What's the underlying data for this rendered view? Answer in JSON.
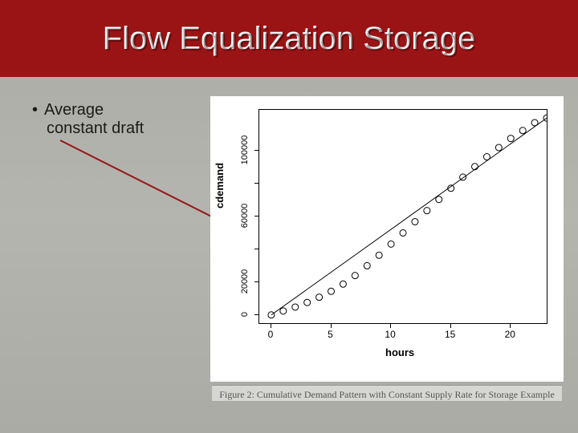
{
  "title": "Flow Equalization Storage",
  "bullet": {
    "line1": "Average",
    "line2": "constant draft"
  },
  "caption": "Figure 2: Cumulative Demand Pattern with Constant Supply Rate for Storage Example",
  "arrow": {
    "color": "#9a1416",
    "width": 2
  },
  "chart": {
    "type": "scatter+line",
    "xlabel": "hours",
    "ylabel": "cdemand",
    "xlim": [
      -1,
      23
    ],
    "ylim": [
      -5000,
      125000
    ],
    "xticks": [
      0,
      5,
      10,
      15,
      20
    ],
    "yticks": [
      0,
      20000,
      40000,
      60000,
      80000,
      100000
    ],
    "ytick_labels": [
      "0",
      "20000",
      "",
      "60000",
      "",
      "100000"
    ],
    "points": [
      {
        "x": 0,
        "y": 0
      },
      {
        "x": 1,
        "y": 2400
      },
      {
        "x": 2,
        "y": 4800
      },
      {
        "x": 3,
        "y": 7600
      },
      {
        "x": 4,
        "y": 10800
      },
      {
        "x": 5,
        "y": 14400
      },
      {
        "x": 6,
        "y": 18800
      },
      {
        "x": 7,
        "y": 24000
      },
      {
        "x": 8,
        "y": 30000
      },
      {
        "x": 9,
        "y": 36400
      },
      {
        "x": 10,
        "y": 43200
      },
      {
        "x": 11,
        "y": 50000
      },
      {
        "x": 12,
        "y": 56800
      },
      {
        "x": 13,
        "y": 63600
      },
      {
        "x": 14,
        "y": 70400
      },
      {
        "x": 15,
        "y": 77200
      },
      {
        "x": 16,
        "y": 84000
      },
      {
        "x": 17,
        "y": 90400
      },
      {
        "x": 18,
        "y": 96400
      },
      {
        "x": 19,
        "y": 102000
      },
      {
        "x": 20,
        "y": 107600
      },
      {
        "x": 21,
        "y": 112400
      },
      {
        "x": 22,
        "y": 117200
      },
      {
        "x": 23,
        "y": 120000
      }
    ],
    "line": {
      "x1": 0,
      "y1": 0,
      "x2": 23,
      "y2": 120000
    },
    "marker": {
      "shape": "circle",
      "size": 4,
      "fill": "none",
      "stroke": "#000000"
    },
    "line_color": "#000000",
    "line_width": 1,
    "background_color": "#ffffff",
    "border_color": "#000000",
    "tick_fontsize": 12,
    "label_fontsize": 13
  },
  "colors": {
    "slide_bg_top": "#ababa5",
    "title_bg": "#9a1416",
    "title_text": "#ffffff",
    "body_text": "#1a1a1a"
  }
}
